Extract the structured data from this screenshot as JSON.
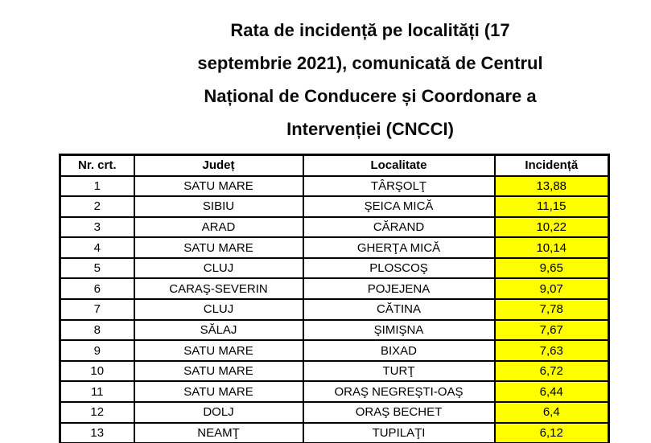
{
  "title": {
    "lines": [
      "Rata de incidență pe localități (17",
      "septembrie 2021), comunicată de Centrul",
      "Național de Conducere și Coordonare a",
      "Intervenției (CNCCI)"
    ]
  },
  "table": {
    "columns": [
      "Nr. crt.",
      "Județ",
      "Localitate",
      "Incidență"
    ],
    "highlight_color": "#FFFF00",
    "border_color": "#000000",
    "rows": [
      {
        "nr": "1",
        "judet": "SATU MARE",
        "localitate": "TÂRŞOLŢ",
        "incidenta": "13,88"
      },
      {
        "nr": "2",
        "judet": "SIBIU",
        "localitate": "ŞEICA MICĂ",
        "incidenta": "11,15"
      },
      {
        "nr": "3",
        "judet": "ARAD",
        "localitate": "CĂRAND",
        "incidenta": "10,22"
      },
      {
        "nr": "4",
        "judet": "SATU MARE",
        "localitate": "GHERŢA MICĂ",
        "incidenta": "10,14"
      },
      {
        "nr": "5",
        "judet": "CLUJ",
        "localitate": "PLOSCOŞ",
        "incidenta": "9,65"
      },
      {
        "nr": "6",
        "judet": "CARAŞ-SEVERIN",
        "localitate": "POJEJENA",
        "incidenta": "9,07"
      },
      {
        "nr": "7",
        "judet": "CLUJ",
        "localitate": "CĂTINA",
        "incidenta": "7,78"
      },
      {
        "nr": "8",
        "judet": "SĂLAJ",
        "localitate": "ŞIMIŞNA",
        "incidenta": "7,67"
      },
      {
        "nr": "9",
        "judet": "SATU MARE",
        "localitate": "BIXAD",
        "incidenta": "7,63"
      },
      {
        "nr": "10",
        "judet": "SATU MARE",
        "localitate": "TURŢ",
        "incidenta": "6,72"
      },
      {
        "nr": "11",
        "judet": "SATU MARE",
        "localitate": "ORAŞ NEGREŞTI-OAŞ",
        "incidenta": "6,44"
      },
      {
        "nr": "12",
        "judet": "DOLJ",
        "localitate": "ORAŞ BECHET",
        "incidenta": "6,4"
      },
      {
        "nr": "13",
        "judet": "NEAMŢ",
        "localitate": "TUPILAŢI",
        "incidenta": "6,12"
      }
    ]
  }
}
